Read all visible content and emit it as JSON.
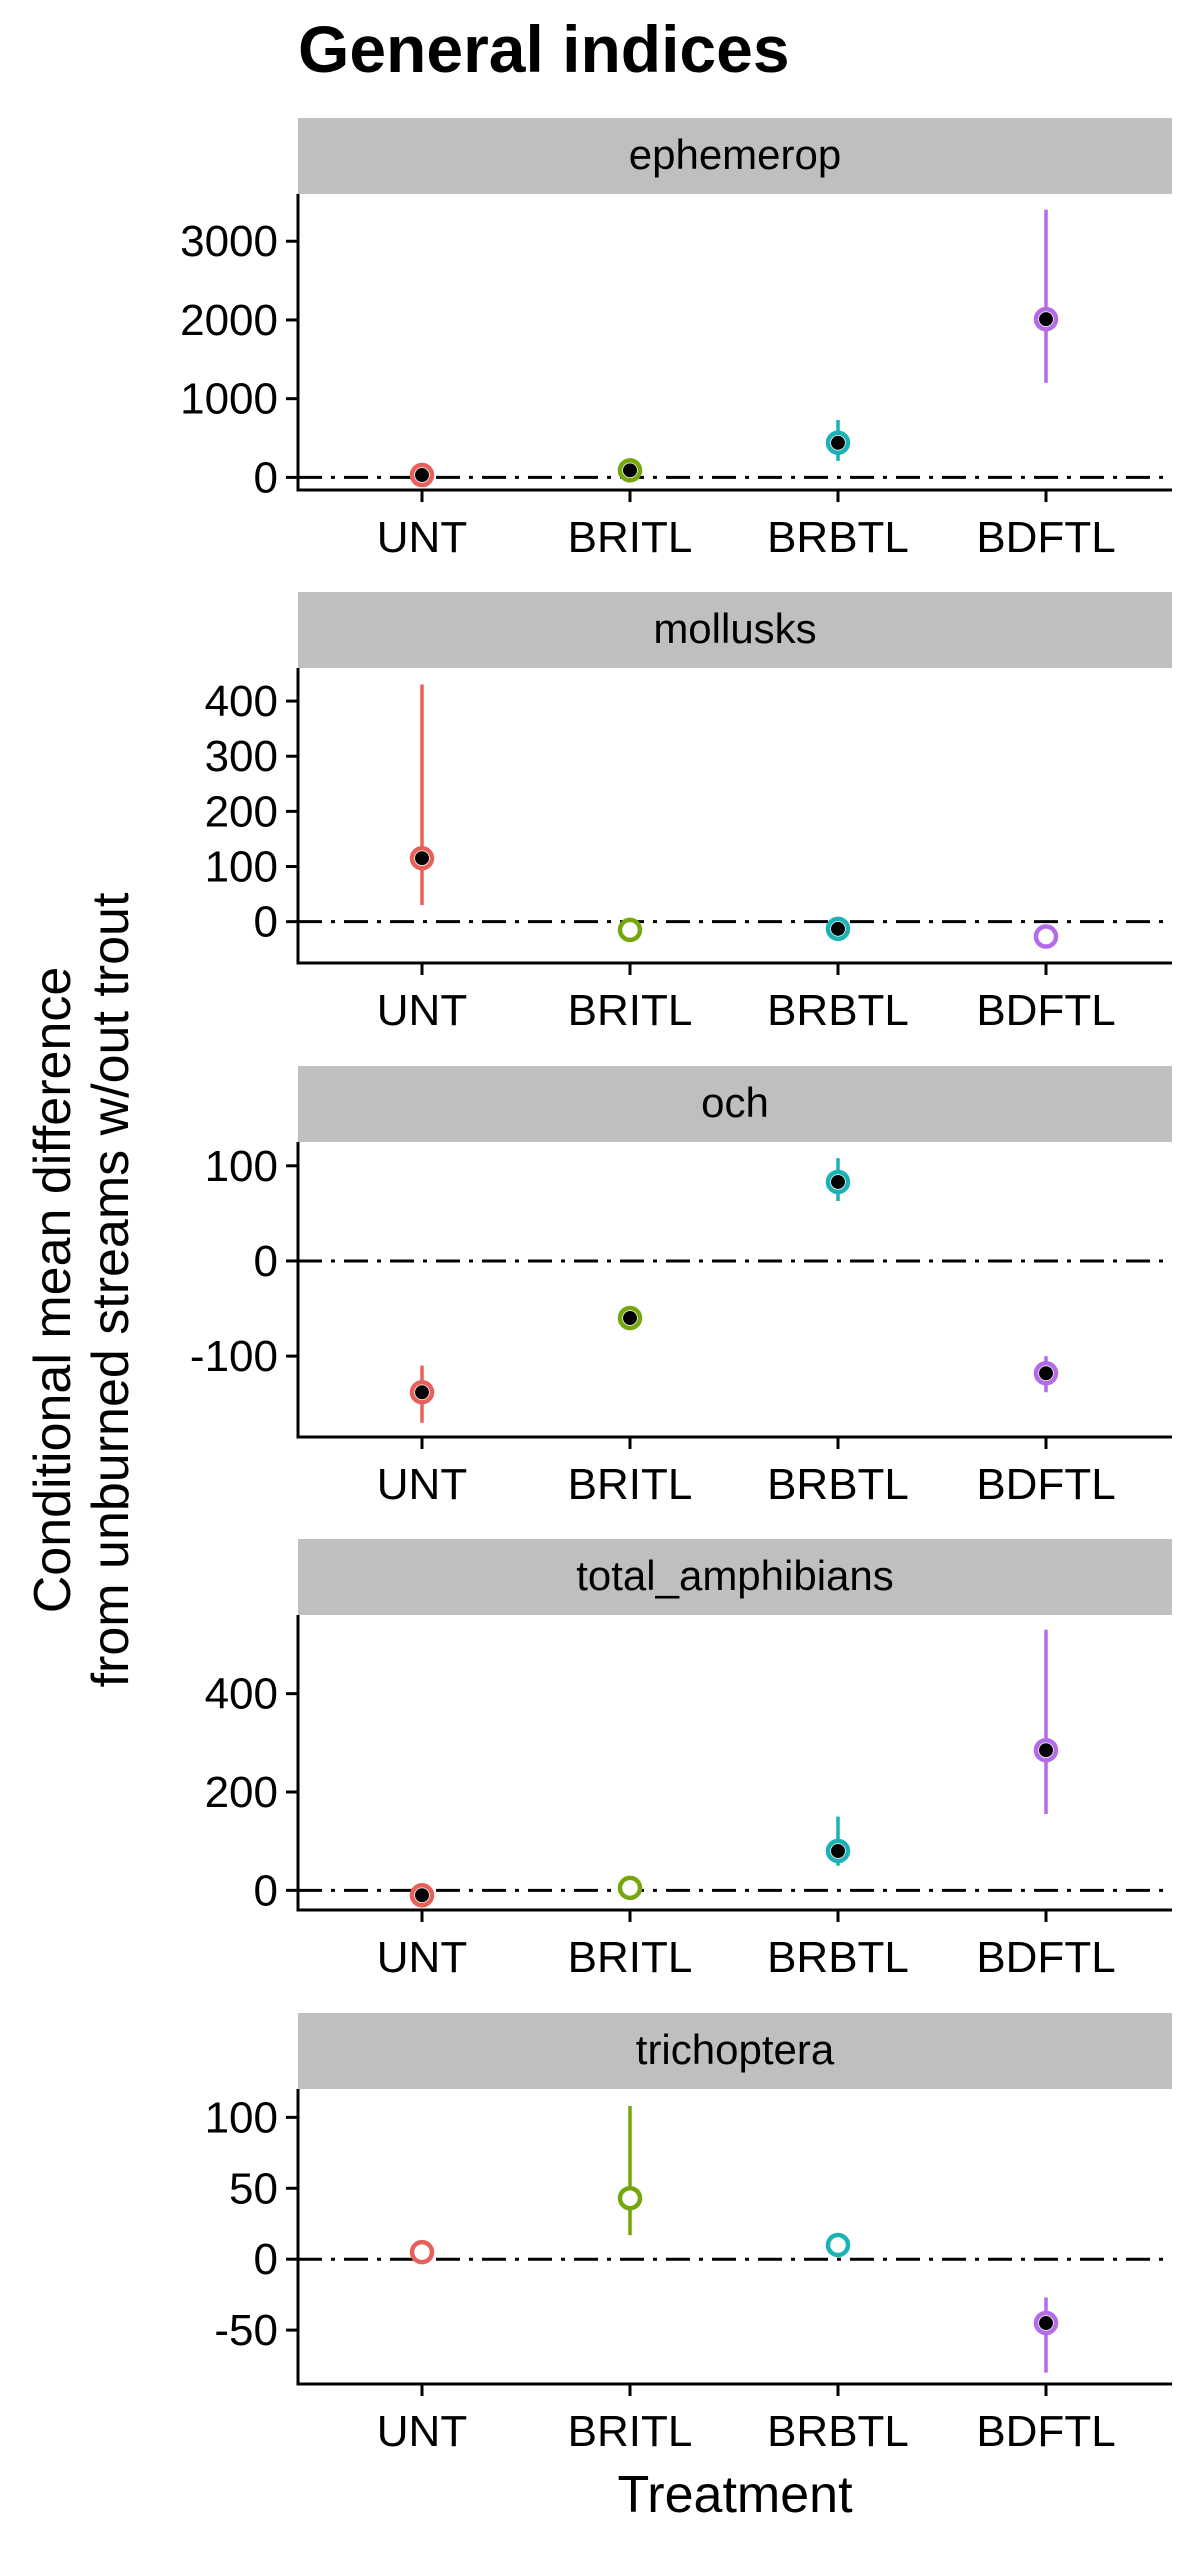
{
  "chart_data": {
    "type": "scatter",
    "title": "General indices",
    "xlabel": "Treatment",
    "ylabel_lines": [
      "Conditional mean difference",
      "from unburned streams w/out trout"
    ],
    "categories": [
      "UNT",
      "BRITL",
      "BRBTL",
      "BDFTL"
    ],
    "colors": {
      "UNT": "#e8605a",
      "BRITL": "#76a60e",
      "BRBTL": "#1cb2b5",
      "BDFTL": "#b36be8"
    },
    "reference_line": 0,
    "grid": false,
    "legend": "none",
    "panels": [
      {
        "name": "ephemerop",
        "ylim": [
          -160,
          3600
        ],
        "ticks": [
          0,
          1000,
          2000,
          3000
        ],
        "points": [
          {
            "x": "UNT",
            "y": 30,
            "low": null,
            "high": null,
            "filled": true
          },
          {
            "x": "BRITL",
            "y": 90,
            "low": null,
            "high": null,
            "filled": true
          },
          {
            "x": "BRBTL",
            "y": 440,
            "low": 210,
            "high": 730,
            "filled": true
          },
          {
            "x": "BDFTL",
            "y": 2010,
            "low": 1200,
            "high": 3400,
            "filled": true
          }
        ]
      },
      {
        "name": "mollusks",
        "ylim": [
          -75,
          460
        ],
        "ticks": [
          0,
          100,
          200,
          300,
          400
        ],
        "points": [
          {
            "x": "UNT",
            "y": 115,
            "low": 30,
            "high": 430,
            "filled": true
          },
          {
            "x": "BRITL",
            "y": -15,
            "low": null,
            "high": null,
            "filled": false
          },
          {
            "x": "BRBTL",
            "y": -13,
            "low": -35,
            "high": 0,
            "filled": true
          },
          {
            "x": "BDFTL",
            "y": -27,
            "low": null,
            "high": null,
            "filled": false
          }
        ]
      },
      {
        "name": "och",
        "ylim": [
          -185,
          125
        ],
        "ticks": [
          -100,
          0,
          100
        ],
        "points": [
          {
            "x": "UNT",
            "y": -138,
            "low": -170,
            "high": -110,
            "filled": true
          },
          {
            "x": "BRITL",
            "y": -60,
            "low": null,
            "high": null,
            "filled": true
          },
          {
            "x": "BRBTL",
            "y": 83,
            "low": 63,
            "high": 108,
            "filled": true
          },
          {
            "x": "BDFTL",
            "y": -118,
            "low": -138,
            "high": -100,
            "filled": true
          }
        ]
      },
      {
        "name": "total_amphibians",
        "ylim": [
          -40,
          560
        ],
        "ticks": [
          0,
          200,
          400
        ],
        "points": [
          {
            "x": "UNT",
            "y": -10,
            "low": null,
            "high": null,
            "filled": true
          },
          {
            "x": "BRITL",
            "y": 5,
            "low": null,
            "high": null,
            "filled": false
          },
          {
            "x": "BRBTL",
            "y": 80,
            "low": 50,
            "high": 150,
            "filled": true
          },
          {
            "x": "BDFTL",
            "y": 285,
            "low": 155,
            "high": 530,
            "filled": true
          }
        ]
      },
      {
        "name": "trichoptera",
        "ylim": [
          -88,
          120
        ],
        "ticks": [
          -50,
          0,
          50,
          100
        ],
        "points": [
          {
            "x": "UNT",
            "y": 5,
            "low": null,
            "high": null,
            "filled": false
          },
          {
            "x": "BRITL",
            "y": 43,
            "low": 17,
            "high": 108,
            "filled": false
          },
          {
            "x": "BRBTL",
            "y": 10,
            "low": null,
            "high": null,
            "filled": false
          },
          {
            "x": "BDFTL",
            "y": -45,
            "low": -80,
            "high": -27,
            "filled": true
          }
        ]
      }
    ]
  }
}
